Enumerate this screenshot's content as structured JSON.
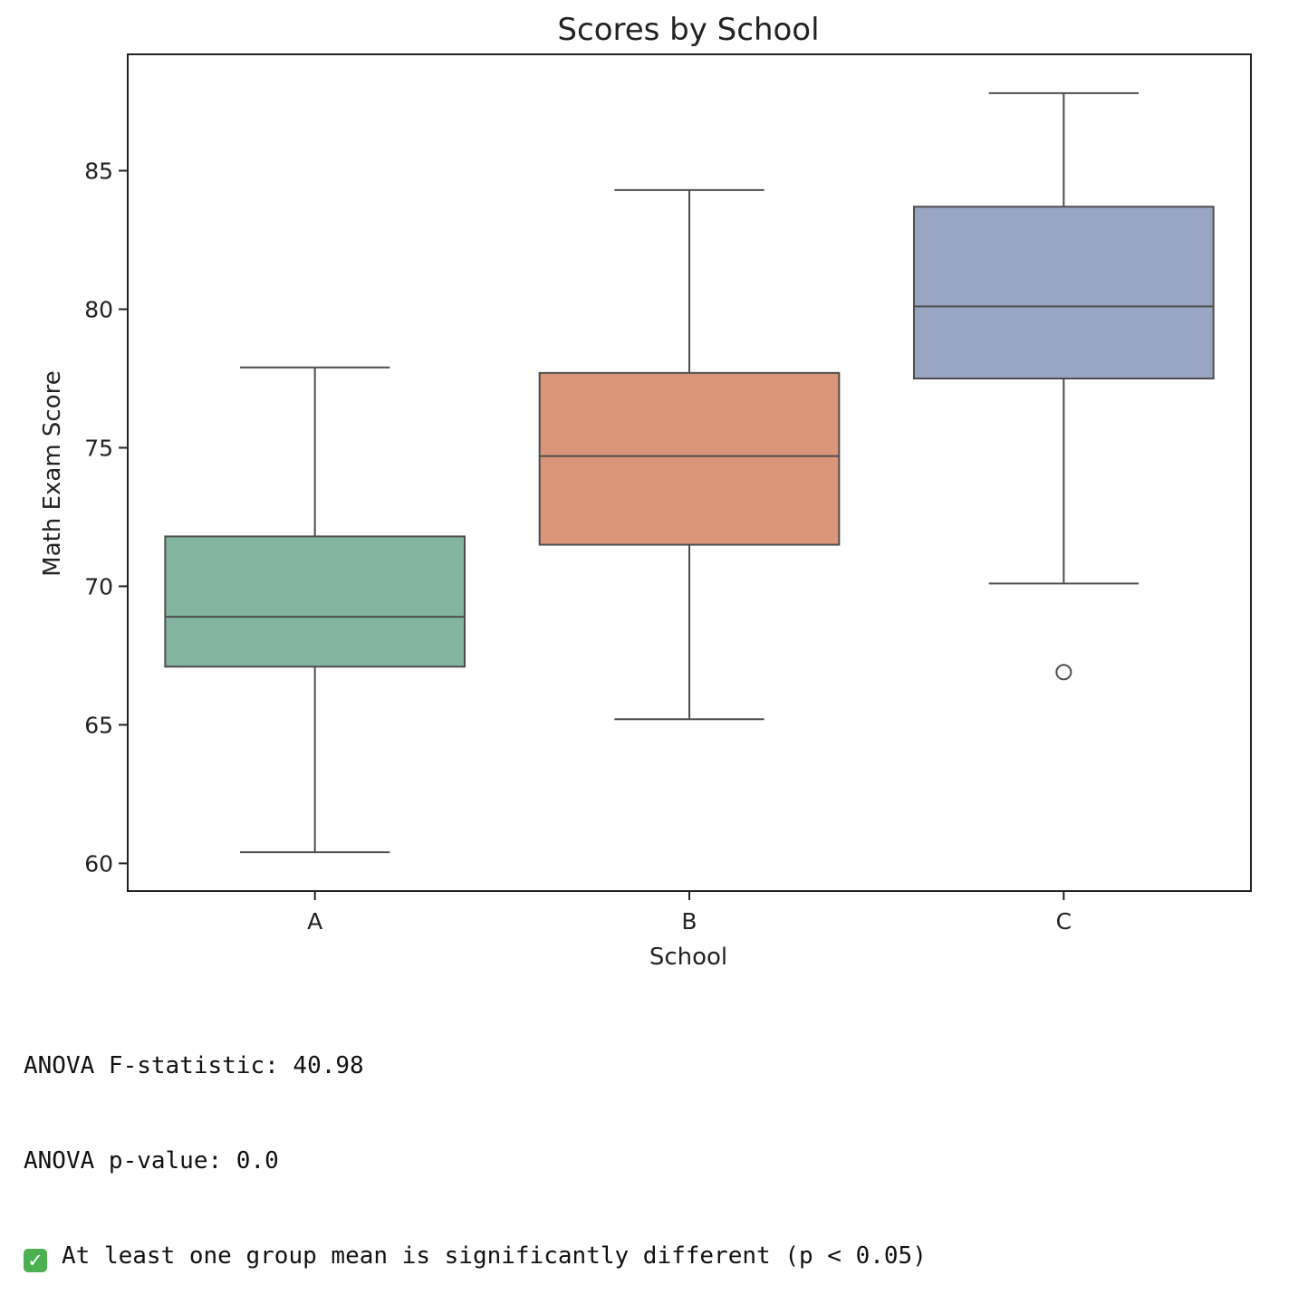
{
  "chart_data": {
    "type": "box",
    "title": "Scores by School",
    "xlabel": "School",
    "ylabel": "Math Exam Score",
    "categories": [
      "A",
      "B",
      "C"
    ],
    "yticks": [
      60,
      65,
      70,
      75,
      80,
      85
    ],
    "ylim": [
      59.0,
      89.2
    ],
    "grid": false,
    "boxes": [
      {
        "category": "A",
        "whisker_low": 60.4,
        "q1": 67.1,
        "median": 68.9,
        "q3": 71.8,
        "whisker_high": 77.9,
        "outliers": [],
        "color": "#82b4a0"
      },
      {
        "category": "B",
        "whisker_low": 65.2,
        "q1": 71.5,
        "median": 74.7,
        "q3": 77.7,
        "whisker_high": 84.3,
        "outliers": [],
        "color": "#db9679"
      },
      {
        "category": "C",
        "whisker_low": 70.1,
        "q1": 77.5,
        "median": 80.1,
        "q3": 83.7,
        "whisker_high": 87.8,
        "outliers": [
          66.9
        ],
        "color": "#99a5c3"
      }
    ]
  },
  "output": {
    "line1": "ANOVA F-statistic: 40.98",
    "line2": "ANOVA p-value: 0.0",
    "line3": "At least one group mean is significantly different (p < 0.05)",
    "line3_icon": "check-mark-icon",
    "line3_icon_color": "#4caf50"
  }
}
